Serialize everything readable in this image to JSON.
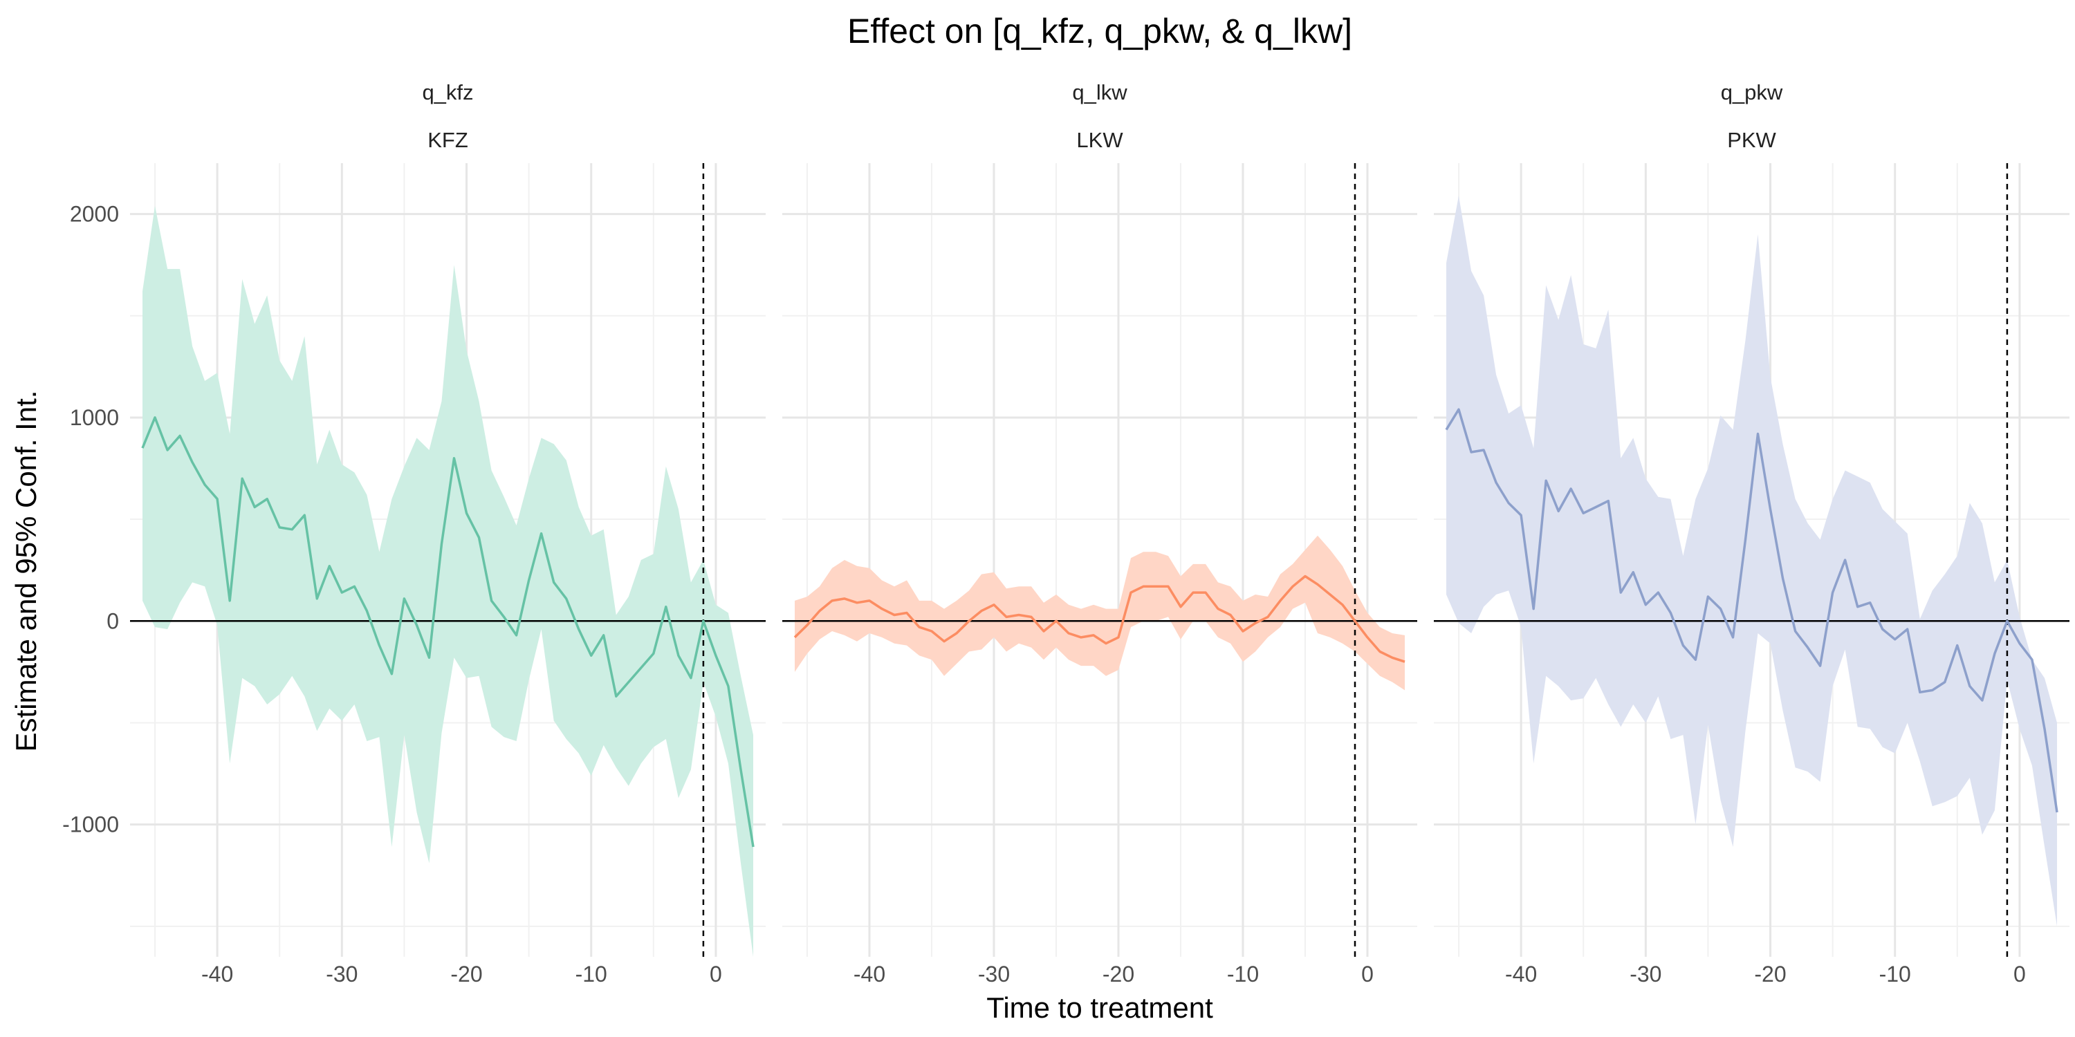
{
  "chart_data": {
    "type": "line",
    "title": "Effect on [q_kfz, q_pkw, & q_lkw]",
    "xlabel": "Time to treatment",
    "ylabel": "Estimate and 95% Conf. Int.",
    "xlim": [
      -47,
      4
    ],
    "ylim": [
      -1650,
      2250
    ],
    "x_ticks": [
      -40,
      -30,
      -20,
      -10,
      0
    ],
    "y_ticks": [
      -1000,
      0,
      1000,
      2000
    ],
    "grid": true,
    "reference_line_y": 0,
    "reference_line_x": -1,
    "x": [
      -46,
      -45,
      -44,
      -43,
      -42,
      -41,
      -40,
      -39,
      -38,
      -37,
      -36,
      -35,
      -34,
      -33,
      -32,
      -31,
      -30,
      -29,
      -28,
      -27,
      -26,
      -25,
      -24,
      -23,
      -22,
      -21,
      -20,
      -19,
      -18,
      -17,
      -16,
      -15,
      -14,
      -13,
      -12,
      -11,
      -10,
      -9,
      -8,
      -7,
      -6,
      -5,
      -4,
      -3,
      -2,
      -1,
      0,
      1,
      2,
      3
    ],
    "panels": [
      {
        "strip_top": "q_kfz",
        "strip_bottom": "KFZ",
        "color": "#66c2a5",
        "band_color": "#cdeee3",
        "estimate": [
          850,
          1000,
          840,
          910,
          780,
          670,
          600,
          100,
          700,
          560,
          600,
          460,
          450,
          520,
          110,
          270,
          140,
          170,
          50,
          -120,
          -260,
          110,
          -20,
          -180,
          380,
          800,
          530,
          410,
          100,
          20,
          -70,
          200,
          430,
          190,
          110,
          -40,
          -170,
          -70,
          -370,
          -300,
          -230,
          -160,
          70,
          -170,
          -280,
          0,
          -170,
          -320,
          -730,
          -1110
        ],
        "upper": [
          1620,
          2040,
          1730,
          1730,
          1350,
          1180,
          1220,
          920,
          1680,
          1460,
          1600,
          1280,
          1180,
          1400,
          770,
          940,
          770,
          730,
          620,
          340,
          600,
          760,
          900,
          840,
          1080,
          1750,
          1330,
          1080,
          740,
          610,
          470,
          700,
          900,
          870,
          790,
          560,
          420,
          450,
          30,
          120,
          300,
          330,
          760,
          550,
          190,
          300,
          80,
          40,
          -270,
          -560
        ],
        "lower": [
          100,
          -30,
          -40,
          90,
          190,
          170,
          -20,
          -700,
          -280,
          -320,
          -410,
          -360,
          -270,
          -370,
          -540,
          -430,
          -490,
          -410,
          -590,
          -570,
          -1110,
          -560,
          -940,
          -1190,
          -550,
          -180,
          -280,
          -270,
          -520,
          -570,
          -590,
          -290,
          -40,
          -490,
          -580,
          -650,
          -760,
          -610,
          -720,
          -810,
          -700,
          -620,
          -580,
          -870,
          -730,
          -300,
          -470,
          -700,
          -1190,
          -1650
        ]
      },
      {
        "strip_top": "q_lkw",
        "strip_bottom": "LKW",
        "color": "#fc8d62",
        "band_color": "#ffd6c6",
        "estimate": [
          -80,
          -20,
          50,
          100,
          110,
          90,
          100,
          60,
          30,
          40,
          -30,
          -50,
          -100,
          -60,
          0,
          50,
          80,
          20,
          30,
          20,
          -50,
          0,
          -60,
          -80,
          -70,
          -110,
          -80,
          140,
          170,
          170,
          170,
          70,
          140,
          140,
          60,
          30,
          -50,
          -10,
          20,
          100,
          170,
          220,
          180,
          130,
          80,
          0,
          -80,
          -150,
          -180,
          -200
        ],
        "upper": [
          100,
          120,
          170,
          260,
          300,
          270,
          260,
          200,
          170,
          200,
          100,
          100,
          60,
          100,
          150,
          230,
          240,
          160,
          170,
          170,
          90,
          130,
          80,
          60,
          80,
          60,
          60,
          310,
          340,
          340,
          320,
          220,
          280,
          280,
          190,
          170,
          100,
          130,
          120,
          230,
          280,
          350,
          420,
          350,
          270,
          150,
          40,
          -30,
          -60,
          -70
        ],
        "lower": [
          -250,
          -160,
          -90,
          -50,
          -70,
          -100,
          -60,
          -80,
          -110,
          -120,
          -170,
          -190,
          -270,
          -210,
          -150,
          -140,
          -80,
          -150,
          -110,
          -130,
          -190,
          -130,
          -190,
          -220,
          -220,
          -270,
          -240,
          -30,
          0,
          0,
          20,
          -90,
          0,
          0,
          -80,
          -110,
          -200,
          -150,
          -80,
          -30,
          60,
          90,
          -60,
          -80,
          -110,
          -150,
          -210,
          -270,
          -300,
          -340
        ]
      },
      {
        "strip_top": "q_pkw",
        "strip_bottom": "PKW",
        "color": "#8da0cb",
        "band_color": "#dde2f1",
        "estimate": [
          940,
          1040,
          830,
          840,
          680,
          580,
          520,
          60,
          690,
          540,
          650,
          530,
          560,
          590,
          140,
          240,
          80,
          140,
          40,
          -120,
          -190,
          120,
          60,
          -80,
          400,
          920,
          550,
          210,
          -50,
          -130,
          -220,
          140,
          300,
          70,
          90,
          -40,
          -90,
          -40,
          -350,
          -340,
          -300,
          -120,
          -320,
          -390,
          -160,
          0,
          -110,
          -190,
          -530,
          -940
        ],
        "upper": [
          1760,
          2090,
          1720,
          1600,
          1210,
          1020,
          1060,
          850,
          1650,
          1480,
          1700,
          1360,
          1340,
          1530,
          800,
          900,
          700,
          610,
          600,
          320,
          600,
          750,
          1010,
          940,
          1380,
          1900,
          1200,
          870,
          600,
          480,
          400,
          600,
          740,
          710,
          680,
          550,
          490,
          430,
          10,
          150,
          230,
          320,
          580,
          480,
          190,
          300,
          20,
          -190,
          -280,
          -500
        ],
        "lower": [
          130,
          -10,
          -60,
          70,
          130,
          150,
          -30,
          -700,
          -270,
          -320,
          -390,
          -380,
          -280,
          -410,
          -520,
          -410,
          -500,
          -370,
          -580,
          -560,
          -1000,
          -510,
          -880,
          -1110,
          -540,
          -60,
          -110,
          -440,
          -720,
          -740,
          -790,
          -320,
          -140,
          -520,
          -530,
          -620,
          -650,
          -500,
          -690,
          -910,
          -890,
          -860,
          -770,
          -1050,
          -930,
          -290,
          -530,
          -710,
          -1110,
          -1500
        ]
      }
    ]
  }
}
